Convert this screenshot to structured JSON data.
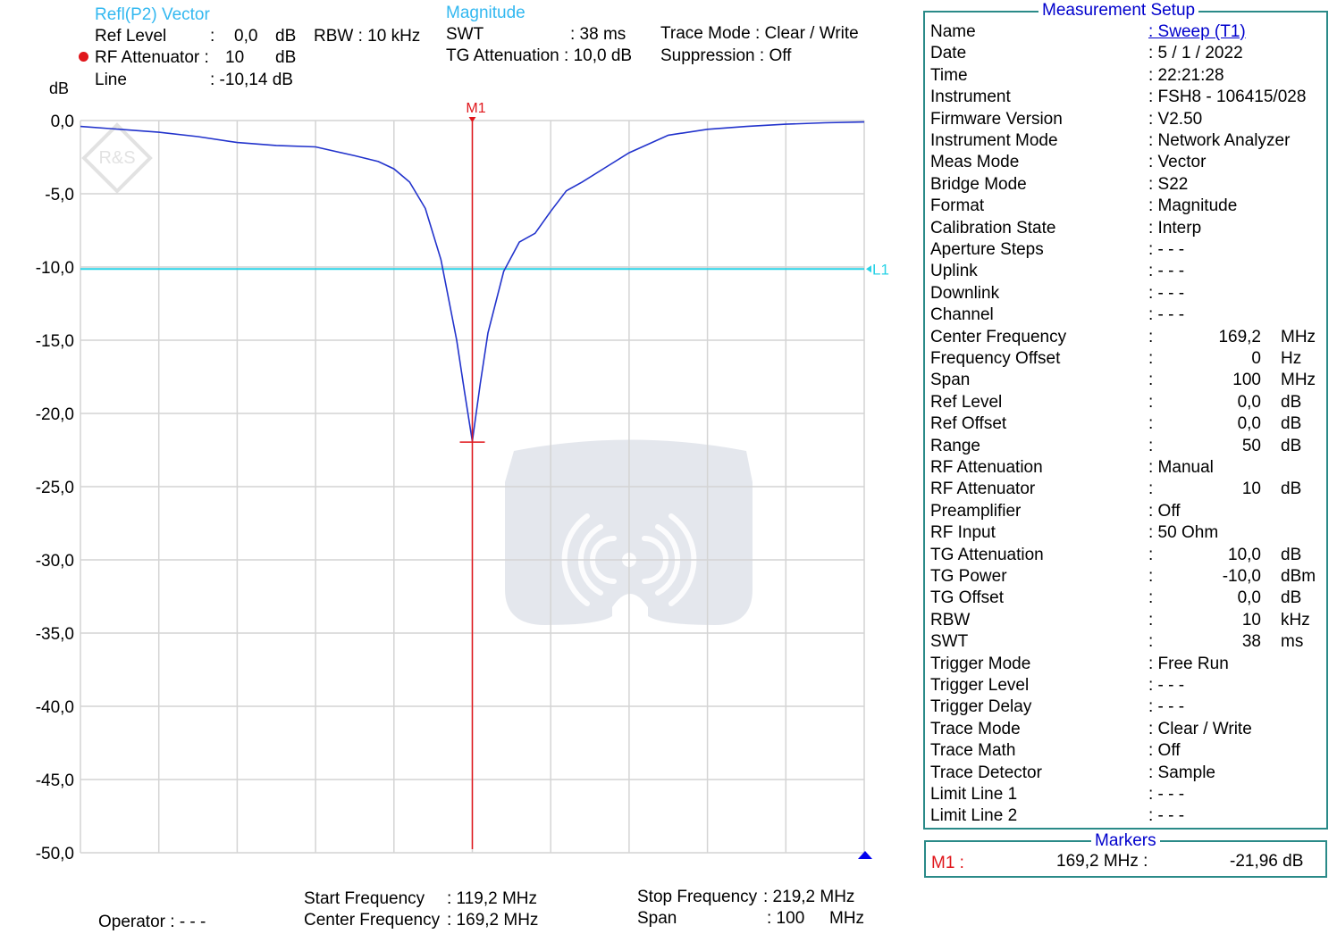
{
  "header": {
    "trace_label": "Refl(P2) Vector",
    "format_label": "Magnitude",
    "ref_level_label": "Ref Level",
    "ref_level_value": "0,0",
    "ref_level_unit": "dB",
    "rbw_label": "RBW : 10 kHz",
    "swt_label": "SWT",
    "swt_value": ": 38 ms",
    "trace_mode_label": "Trace Mode : Clear / Write",
    "rf_att_label": "RF Attenuator :",
    "rf_att_value": "10",
    "rf_att_unit": "dB",
    "tg_att_label": "TG Attenuation : 10,0 dB",
    "suppression_label": "Suppression : Off",
    "line_label": "Line",
    "line_value": ": -10,14 dB",
    "y_unit": "dB",
    "status_dot_color": "#e0161b"
  },
  "chart_data": {
    "type": "line",
    "ylabel": "dB",
    "ylim": [
      -50,
      0
    ],
    "xlim": [
      119.2,
      219.2
    ],
    "x_unit": "MHz",
    "y_ticks": [
      "0,0",
      "-5,0",
      "-10,0",
      "-15,0",
      "-20,0",
      "-25,0",
      "-30,0",
      "-35,0",
      "-40,0",
      "-45,0",
      "-50,0"
    ],
    "grid": true,
    "series": [
      {
        "color": "#2233cc",
        "x": [
          119.2,
          124.2,
          129.2,
          134.2,
          139.2,
          144.2,
          149.2,
          154.2,
          157.2,
          159.2,
          161.2,
          163.2,
          165.2,
          167.2,
          168.2,
          169.2,
          170.2,
          171.2,
          173.2,
          175.2,
          177.2,
          179.2,
          181.2,
          183.2,
          186.2,
          189.2,
          194.2,
          199.2,
          204.2,
          209.2,
          214.2,
          219.2
        ],
        "y": [
          -0.4,
          -0.6,
          -0.8,
          -1.1,
          -1.5,
          -1.7,
          -1.8,
          -2.4,
          -2.8,
          -3.3,
          -4.2,
          -6.0,
          -9.5,
          -15.0,
          -18.5,
          -21.9,
          -18.0,
          -14.5,
          -10.3,
          -8.3,
          -7.7,
          -6.2,
          -4.8,
          -4.2,
          -3.2,
          -2.2,
          -1.0,
          -0.6,
          -0.4,
          -0.25,
          -0.15,
          -0.1
        ]
      }
    ],
    "limit_line": {
      "name": "L1",
      "value": -10.14,
      "color": "#28d2e6"
    },
    "marker": {
      "name": "M1",
      "x": 169.2,
      "y": -21.96,
      "color": "#e0161b"
    },
    "logo_text": "R&S"
  },
  "setup": {
    "title": "Measurement Setup",
    "rows": [
      {
        "label": "Name",
        "value": ": Sweep (T1)",
        "link": true
      },
      {
        "label": "Date",
        "value": ": 5 / 1 / 2022"
      },
      {
        "label": "Time",
        "value": ": 22:21:28"
      },
      {
        "label": "Instrument",
        "value": ": FSH8 - 106415/028"
      },
      {
        "label": "Firmware Version",
        "value": ": V2.50"
      },
      {
        "label": "Instrument Mode",
        "value": ": Network Analyzer"
      },
      {
        "label": "Meas Mode",
        "value": ": Vector"
      },
      {
        "label": "Bridge Mode",
        "value": ": S22"
      },
      {
        "label": "Format",
        "value": ": Magnitude"
      },
      {
        "label": "Calibration State",
        "value": ": Interp"
      },
      {
        "label": "Aperture Steps",
        "value": ": - - -"
      },
      {
        "label": "Uplink",
        "value": ": - - -"
      },
      {
        "label": "Downlink",
        "value": ": - - -"
      },
      {
        "label": "Channel",
        "value": ": - - -"
      },
      {
        "label": "Center Frequency",
        "num": "169,2",
        "unit": "MHz"
      },
      {
        "label": "Frequency Offset",
        "num": "0",
        "unit": "Hz"
      },
      {
        "label": "Span",
        "num": "100",
        "unit": "MHz"
      },
      {
        "label": "Ref Level",
        "num": "0,0",
        "unit": "dB"
      },
      {
        "label": "Ref Offset",
        "num": "0,0",
        "unit": "dB"
      },
      {
        "label": "Range",
        "num": "50",
        "unit": "dB"
      },
      {
        "label": "RF Attenuation",
        "value": ": Manual"
      },
      {
        "label": "RF Attenuator",
        "num": "10",
        "unit": "dB"
      },
      {
        "label": "Preamplifier",
        "value": ": Off"
      },
      {
        "label": "RF Input",
        "value": ": 50 Ohm"
      },
      {
        "label": "TG Attenuation",
        "num": "10,0",
        "unit": "dB"
      },
      {
        "label": "TG Power",
        "num": "-10,0",
        "unit": "dBm"
      },
      {
        "label": "TG Offset",
        "num": "0,0",
        "unit": "dB"
      },
      {
        "label": "RBW",
        "num": "10",
        "unit": "kHz"
      },
      {
        "label": "SWT",
        "num": "38",
        "unit": "ms"
      },
      {
        "label": "Trigger Mode",
        "value": ": Free Run"
      },
      {
        "label": "Trigger Level",
        "value": ": - - -"
      },
      {
        "label": "Trigger Delay",
        "value": ": - - -"
      },
      {
        "label": "Trace Mode",
        "value": ": Clear / Write"
      },
      {
        "label": "Trace Math",
        "value": ": Off"
      },
      {
        "label": "Trace Detector",
        "value": ": Sample"
      },
      {
        "label": "Limit Line 1",
        "value": ": - - -"
      },
      {
        "label": "Limit Line 2",
        "value": ": - - -"
      }
    ]
  },
  "markers": {
    "title": "Markers",
    "name": "M1 :",
    "freq": "169,2 MHz :",
    "level": "-21,96 dB"
  },
  "footer": {
    "start_label": "Start Frequency",
    "start_value": ": 119,2 MHz",
    "center_label": "Center Frequency",
    "center_value": ": 169,2 MHz",
    "stop_label": "Stop Frequency",
    "stop_value": ": 219,2 MHz",
    "span_label": "Span",
    "span_value": ": 100",
    "span_unit": "MHz",
    "operator": "Operator : - - -"
  }
}
